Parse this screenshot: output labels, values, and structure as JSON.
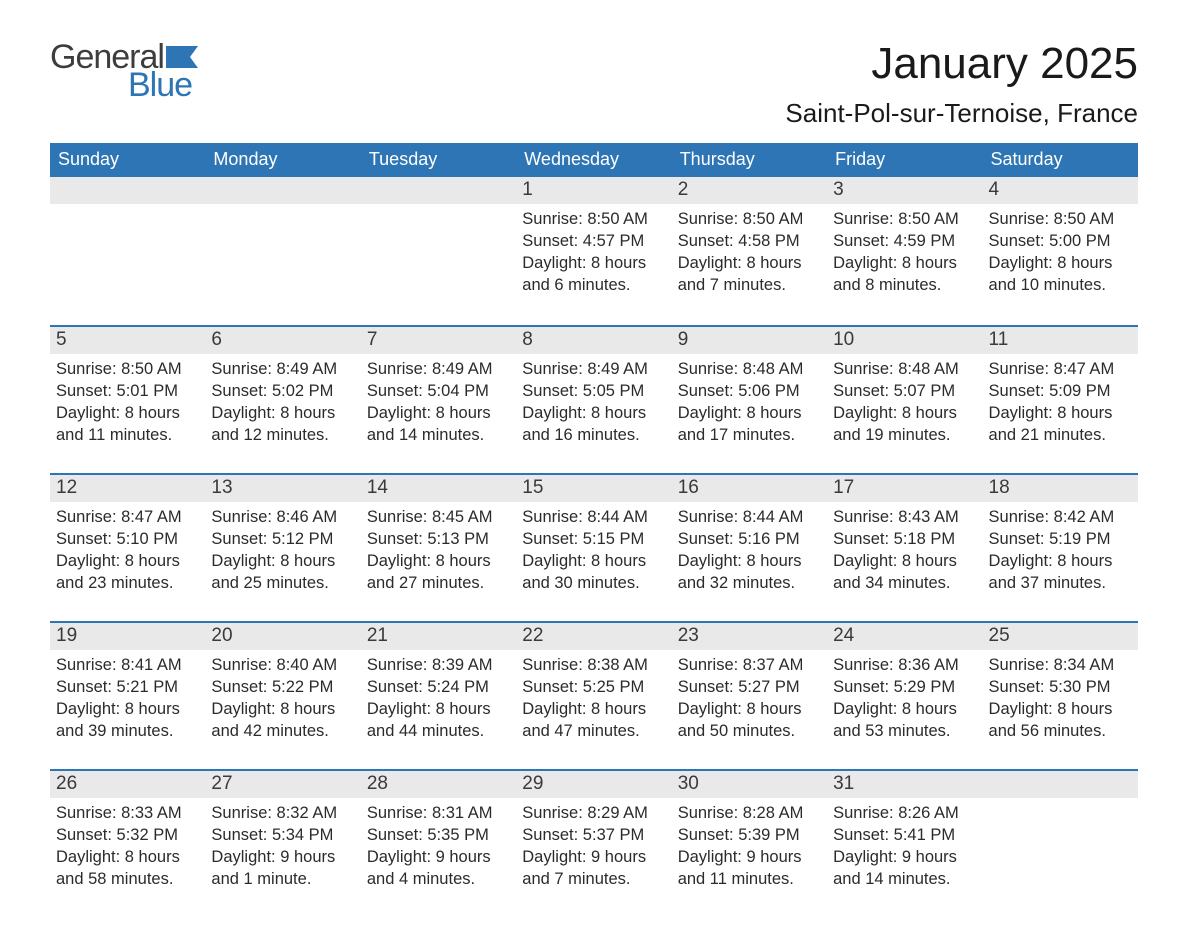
{
  "logo": {
    "text_general": "General",
    "text_blue": "Blue",
    "flag_color": "#2e75b6"
  },
  "title": {
    "month": "January 2025",
    "location": "Saint-Pol-sur-Ternoise, France"
  },
  "colors": {
    "header_bg": "#2e75b6",
    "header_text": "#ffffff",
    "daynum_bg": "#e9e9e9",
    "daynum_text": "#3a3a3a",
    "body_text": "#2b2b2b",
    "week_border": "#2e75b6",
    "page_bg": "#ffffff"
  },
  "day_headers": [
    "Sunday",
    "Monday",
    "Tuesday",
    "Wednesday",
    "Thursday",
    "Friday",
    "Saturday"
  ],
  "labels": {
    "sunrise": "Sunrise",
    "sunset": "Sunset",
    "daylight": "Daylight"
  },
  "weeks": [
    [
      null,
      null,
      null,
      {
        "n": "1",
        "sunrise": "8:50 AM",
        "sunset": "4:57 PM",
        "daylight": "8 hours and 6 minutes."
      },
      {
        "n": "2",
        "sunrise": "8:50 AM",
        "sunset": "4:58 PM",
        "daylight": "8 hours and 7 minutes."
      },
      {
        "n": "3",
        "sunrise": "8:50 AM",
        "sunset": "4:59 PM",
        "daylight": "8 hours and 8 minutes."
      },
      {
        "n": "4",
        "sunrise": "8:50 AM",
        "sunset": "5:00 PM",
        "daylight": "8 hours and 10 minutes."
      }
    ],
    [
      {
        "n": "5",
        "sunrise": "8:50 AM",
        "sunset": "5:01 PM",
        "daylight": "8 hours and 11 minutes."
      },
      {
        "n": "6",
        "sunrise": "8:49 AM",
        "sunset": "5:02 PM",
        "daylight": "8 hours and 12 minutes."
      },
      {
        "n": "7",
        "sunrise": "8:49 AM",
        "sunset": "5:04 PM",
        "daylight": "8 hours and 14 minutes."
      },
      {
        "n": "8",
        "sunrise": "8:49 AM",
        "sunset": "5:05 PM",
        "daylight": "8 hours and 16 minutes."
      },
      {
        "n": "9",
        "sunrise": "8:48 AM",
        "sunset": "5:06 PM",
        "daylight": "8 hours and 17 minutes."
      },
      {
        "n": "10",
        "sunrise": "8:48 AM",
        "sunset": "5:07 PM",
        "daylight": "8 hours and 19 minutes."
      },
      {
        "n": "11",
        "sunrise": "8:47 AM",
        "sunset": "5:09 PM",
        "daylight": "8 hours and 21 minutes."
      }
    ],
    [
      {
        "n": "12",
        "sunrise": "8:47 AM",
        "sunset": "5:10 PM",
        "daylight": "8 hours and 23 minutes."
      },
      {
        "n": "13",
        "sunrise": "8:46 AM",
        "sunset": "5:12 PM",
        "daylight": "8 hours and 25 minutes."
      },
      {
        "n": "14",
        "sunrise": "8:45 AM",
        "sunset": "5:13 PM",
        "daylight": "8 hours and 27 minutes."
      },
      {
        "n": "15",
        "sunrise": "8:44 AM",
        "sunset": "5:15 PM",
        "daylight": "8 hours and 30 minutes."
      },
      {
        "n": "16",
        "sunrise": "8:44 AM",
        "sunset": "5:16 PM",
        "daylight": "8 hours and 32 minutes."
      },
      {
        "n": "17",
        "sunrise": "8:43 AM",
        "sunset": "5:18 PM",
        "daylight": "8 hours and 34 minutes."
      },
      {
        "n": "18",
        "sunrise": "8:42 AM",
        "sunset": "5:19 PM",
        "daylight": "8 hours and 37 minutes."
      }
    ],
    [
      {
        "n": "19",
        "sunrise": "8:41 AM",
        "sunset": "5:21 PM",
        "daylight": "8 hours and 39 minutes."
      },
      {
        "n": "20",
        "sunrise": "8:40 AM",
        "sunset": "5:22 PM",
        "daylight": "8 hours and 42 minutes."
      },
      {
        "n": "21",
        "sunrise": "8:39 AM",
        "sunset": "5:24 PM",
        "daylight": "8 hours and 44 minutes."
      },
      {
        "n": "22",
        "sunrise": "8:38 AM",
        "sunset": "5:25 PM",
        "daylight": "8 hours and 47 minutes."
      },
      {
        "n": "23",
        "sunrise": "8:37 AM",
        "sunset": "5:27 PM",
        "daylight": "8 hours and 50 minutes."
      },
      {
        "n": "24",
        "sunrise": "8:36 AM",
        "sunset": "5:29 PM",
        "daylight": "8 hours and 53 minutes."
      },
      {
        "n": "25",
        "sunrise": "8:34 AM",
        "sunset": "5:30 PM",
        "daylight": "8 hours and 56 minutes."
      }
    ],
    [
      {
        "n": "26",
        "sunrise": "8:33 AM",
        "sunset": "5:32 PM",
        "daylight": "8 hours and 58 minutes."
      },
      {
        "n": "27",
        "sunrise": "8:32 AM",
        "sunset": "5:34 PM",
        "daylight": "9 hours and 1 minute."
      },
      {
        "n": "28",
        "sunrise": "8:31 AM",
        "sunset": "5:35 PM",
        "daylight": "9 hours and 4 minutes."
      },
      {
        "n": "29",
        "sunrise": "8:29 AM",
        "sunset": "5:37 PM",
        "daylight": "9 hours and 7 minutes."
      },
      {
        "n": "30",
        "sunrise": "8:28 AM",
        "sunset": "5:39 PM",
        "daylight": "9 hours and 11 minutes."
      },
      {
        "n": "31",
        "sunrise": "8:26 AM",
        "sunset": "5:41 PM",
        "daylight": "9 hours and 14 minutes."
      },
      null
    ]
  ]
}
